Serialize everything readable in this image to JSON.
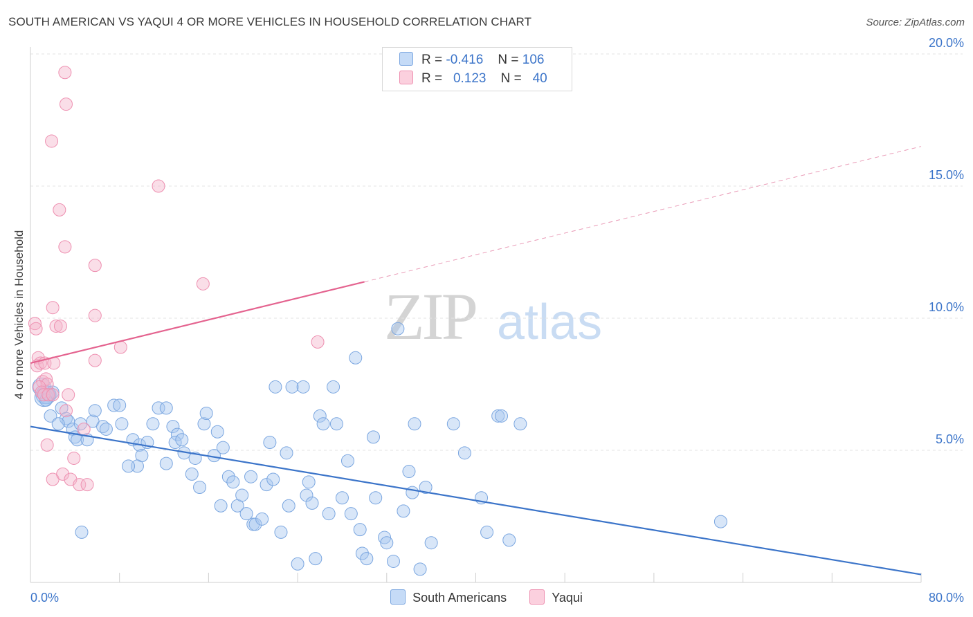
{
  "header": {
    "title": "SOUTH AMERICAN VS YAQUI 4 OR MORE VEHICLES IN HOUSEHOLD CORRELATION CHART",
    "source": "Source: ZipAtlas.com"
  },
  "legend": {
    "rows": [
      {
        "r_label": "R =",
        "r_value": "-0.416",
        "n_label": "N =",
        "n_value": "106",
        "color": "#a9c8f0"
      },
      {
        "r_label": "R =",
        "r_value": "0.123",
        "n_label": "N =",
        "n_value": "40",
        "color": "#f5b5cb"
      }
    ]
  },
  "watermark": {
    "zip": "ZIP",
    "atlas": "atlas"
  },
  "chart_data": {
    "type": "scatter",
    "title": "SOUTH AMERICAN VS YAQUI 4 OR MORE VEHICLES IN HOUSEHOLD CORRELATION CHART",
    "xlabel": "",
    "ylabel": "4 or more Vehicles in Household",
    "xlim": [
      0,
      80
    ],
    "ylim": [
      0,
      20
    ],
    "x_tick_labels": [
      "0.0%",
      "80.0%"
    ],
    "y_tick_labels": [
      "5.0%",
      "10.0%",
      "15.0%",
      "20.0%"
    ],
    "y_ticks": [
      5,
      10,
      15,
      20
    ],
    "grid": true,
    "legend_position": "bottom",
    "series": [
      {
        "name": "South Americans",
        "color": "#6fa3e0",
        "trend": {
          "x": [
            0,
            80
          ],
          "y": [
            5.9,
            0.3
          ],
          "style": "solid"
        },
        "points": [
          [
            1.0,
            7.4
          ],
          [
            1.3,
            7.1
          ],
          [
            1.5,
            7.1
          ],
          [
            1.2,
            7.0
          ],
          [
            1.7,
            7.1
          ],
          [
            2.0,
            7.2
          ],
          [
            1.4,
            6.9
          ],
          [
            2.8,
            6.6
          ],
          [
            1.8,
            6.3
          ],
          [
            3.2,
            6.2
          ],
          [
            3.4,
            6.1
          ],
          [
            2.5,
            6.0
          ],
          [
            3.8,
            5.8
          ],
          [
            4.0,
            5.5
          ],
          [
            4.2,
            5.4
          ],
          [
            5.1,
            5.4
          ],
          [
            4.5,
            6.0
          ],
          [
            5.6,
            6.1
          ],
          [
            5.8,
            6.5
          ],
          [
            6.5,
            5.9
          ],
          [
            6.8,
            5.8
          ],
          [
            7.5,
            6.7
          ],
          [
            8.2,
            6.0
          ],
          [
            8.0,
            6.7
          ],
          [
            9.2,
            5.4
          ],
          [
            9.8,
            5.2
          ],
          [
            10.5,
            5.3
          ],
          [
            10.0,
            4.8
          ],
          [
            9.6,
            4.4
          ],
          [
            8.8,
            4.4
          ],
          [
            11.0,
            6.0
          ],
          [
            11.5,
            6.6
          ],
          [
            12.2,
            6.6
          ],
          [
            12.8,
            5.9
          ],
          [
            13.2,
            5.6
          ],
          [
            12.2,
            4.5
          ],
          [
            13.0,
            5.3
          ],
          [
            13.6,
            5.4
          ],
          [
            13.8,
            4.9
          ],
          [
            14.5,
            4.1
          ],
          [
            14.8,
            4.7
          ],
          [
            15.2,
            3.6
          ],
          [
            15.6,
            6.0
          ],
          [
            15.8,
            6.4
          ],
          [
            16.5,
            4.8
          ],
          [
            16.8,
            5.7
          ],
          [
            17.3,
            5.1
          ],
          [
            17.1,
            2.9
          ],
          [
            17.8,
            4.0
          ],
          [
            18.2,
            3.8
          ],
          [
            18.6,
            2.9
          ],
          [
            19.0,
            3.3
          ],
          [
            19.4,
            2.6
          ],
          [
            19.8,
            4.0
          ],
          [
            20.0,
            2.2
          ],
          [
            20.2,
            2.2
          ],
          [
            20.8,
            2.4
          ],
          [
            21.2,
            3.7
          ],
          [
            21.5,
            5.3
          ],
          [
            21.8,
            3.9
          ],
          [
            22.0,
            7.4
          ],
          [
            22.5,
            1.9
          ],
          [
            23.0,
            4.9
          ],
          [
            23.2,
            2.9
          ],
          [
            23.5,
            7.4
          ],
          [
            24.0,
            0.7
          ],
          [
            24.5,
            7.4
          ],
          [
            24.8,
            3.3
          ],
          [
            25.0,
            3.8
          ],
          [
            25.3,
            3.0
          ],
          [
            25.6,
            0.9
          ],
          [
            26.0,
            6.3
          ],
          [
            26.3,
            6.0
          ],
          [
            26.8,
            2.6
          ],
          [
            27.2,
            7.4
          ],
          [
            27.5,
            6.0
          ],
          [
            28.0,
            3.2
          ],
          [
            28.5,
            4.6
          ],
          [
            28.8,
            2.6
          ],
          [
            29.2,
            8.5
          ],
          [
            29.6,
            2.0
          ],
          [
            29.8,
            1.1
          ],
          [
            30.2,
            0.9
          ],
          [
            30.8,
            5.5
          ],
          [
            31.0,
            3.2
          ],
          [
            31.8,
            1.7
          ],
          [
            32.0,
            1.5
          ],
          [
            32.6,
            0.8
          ],
          [
            33.0,
            9.6
          ],
          [
            33.5,
            2.7
          ],
          [
            34.0,
            4.2
          ],
          [
            34.3,
            3.4
          ],
          [
            34.5,
            6.0
          ],
          [
            35.0,
            0.5
          ],
          [
            35.5,
            3.6
          ],
          [
            36.0,
            1.5
          ],
          [
            38.0,
            6.0
          ],
          [
            39.0,
            4.9
          ],
          [
            40.5,
            3.2
          ],
          [
            41.0,
            1.9
          ],
          [
            42.0,
            6.3
          ],
          [
            42.3,
            6.3
          ],
          [
            43.0,
            1.6
          ],
          [
            44.0,
            6.0
          ],
          [
            4.6,
            1.9
          ],
          [
            62.0,
            2.3
          ]
        ]
      },
      {
        "name": "Yaqui",
        "color": "#f29ab8",
        "trend": {
          "x": [
            0,
            80
          ],
          "y": [
            8.3,
            16.5
          ],
          "style": "solid-then-dashed",
          "solid_until_x": 30
        },
        "points": [
          [
            3.1,
            19.3
          ],
          [
            3.2,
            18.1
          ],
          [
            1.9,
            16.7
          ],
          [
            11.5,
            15.0
          ],
          [
            2.6,
            14.1
          ],
          [
            3.1,
            12.7
          ],
          [
            5.8,
            12.0
          ],
          [
            15.5,
            11.3
          ],
          [
            2.0,
            10.4
          ],
          [
            0.4,
            9.8
          ],
          [
            5.8,
            10.1
          ],
          [
            0.5,
            9.6
          ],
          [
            2.3,
            9.7
          ],
          [
            2.7,
            9.7
          ],
          [
            8.1,
            8.9
          ],
          [
            25.8,
            9.1
          ],
          [
            0.7,
            8.5
          ],
          [
            0.6,
            8.2
          ],
          [
            0.9,
            8.3
          ],
          [
            1.3,
            8.3
          ],
          [
            2.1,
            8.3
          ],
          [
            5.8,
            8.4
          ],
          [
            1.1,
            7.6
          ],
          [
            1.4,
            7.7
          ],
          [
            1.5,
            7.5
          ],
          [
            0.8,
            7.4
          ],
          [
            1.0,
            7.2
          ],
          [
            1.2,
            7.1
          ],
          [
            1.6,
            7.1
          ],
          [
            3.4,
            7.1
          ],
          [
            2.0,
            7.1
          ],
          [
            3.2,
            6.5
          ],
          [
            4.8,
            5.8
          ],
          [
            1.5,
            5.2
          ],
          [
            3.9,
            4.7
          ],
          [
            2.0,
            3.9
          ],
          [
            2.9,
            4.1
          ],
          [
            3.6,
            3.9
          ],
          [
            4.4,
            3.7
          ],
          [
            5.1,
            3.7
          ]
        ]
      }
    ]
  },
  "bottom_legend": [
    {
      "label": "South Americans",
      "color": "#a9c8f0"
    },
    {
      "label": "Yaqui",
      "color": "#f5b5cb"
    }
  ]
}
